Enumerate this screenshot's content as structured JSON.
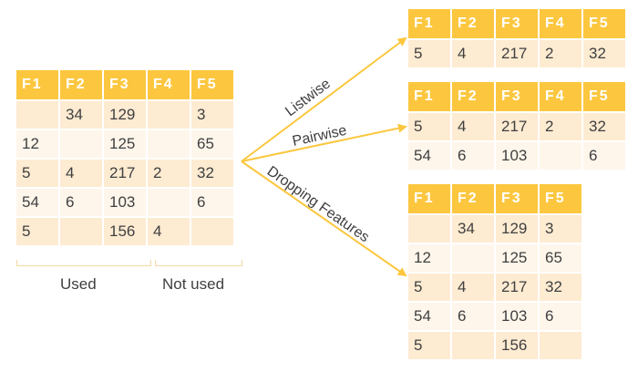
{
  "source": {
    "headers": [
      "F1",
      "F2",
      "F3",
      "F4",
      "F5"
    ],
    "rows": [
      [
        "",
        "34",
        "129",
        "",
        "3"
      ],
      [
        "12",
        "",
        "125",
        "",
        "65"
      ],
      [
        "5",
        "4",
        "217",
        "2",
        "32"
      ],
      [
        "54",
        "6",
        "103",
        "",
        "6"
      ],
      [
        "5",
        "",
        "156",
        "4",
        ""
      ]
    ],
    "used_label": "Used",
    "not_used_label": "Not used"
  },
  "listwise": {
    "label": "Listwise",
    "headers": [
      "F1",
      "F2",
      "F3",
      "F4",
      "F5"
    ],
    "rows": [
      [
        "5",
        "4",
        "217",
        "2",
        "32"
      ]
    ]
  },
  "pairwise": {
    "label": "Pairwise",
    "headers": [
      "F1",
      "F2",
      "F3",
      "F4",
      "F5"
    ],
    "rows": [
      [
        "5",
        "4",
        "217",
        "2",
        "32"
      ],
      [
        "54",
        "6",
        "103",
        "",
        "6"
      ]
    ]
  },
  "dropping": {
    "label": "Dropping Features",
    "headers": [
      "F1",
      "F2",
      "F3",
      "F5"
    ],
    "rows": [
      [
        "",
        "34",
        "129",
        "3"
      ],
      [
        "12",
        "",
        "125",
        "65"
      ],
      [
        "5",
        "4",
        "217",
        "32"
      ],
      [
        "54",
        "6",
        "103",
        "6"
      ],
      [
        "5",
        "",
        "156",
        ""
      ]
    ]
  },
  "colors": {
    "header": "#fcc73f",
    "row_odd": "#fdebd2",
    "row_even": "#fef6eb",
    "arrow": "#fcc73f"
  }
}
